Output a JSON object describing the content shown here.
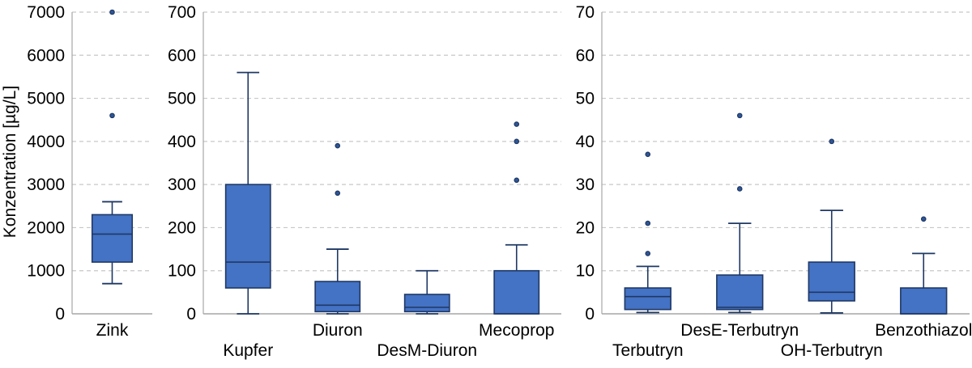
{
  "figure": {
    "background": "#ffffff"
  },
  "chart_data": {
    "type": "boxplot",
    "title": "",
    "ylabel": "Konzentration [µg/L]",
    "grid": true,
    "gridline_style": "dashed",
    "panels": [
      {
        "name": "zink",
        "ylim": [
          0,
          7000
        ],
        "ystep": 1000,
        "tick_labels": [
          "0",
          "1000",
          "2000",
          "3000",
          "4000",
          "5000",
          "6000",
          "7000"
        ],
        "series": [
          {
            "label": "Zink",
            "label_row": "upper",
            "whisker_low": 700,
            "q1": 1200,
            "median": 1850,
            "q3": 2300,
            "whisker_high": 2600,
            "outliers": [
              4600,
              7000
            ]
          }
        ]
      },
      {
        "name": "metals-herbicides",
        "ylim": [
          0,
          700
        ],
        "ystep": 100,
        "tick_labels": [
          "0",
          "100",
          "200",
          "300",
          "400",
          "500",
          "600",
          "700"
        ],
        "series": [
          {
            "label": "Kupfer",
            "label_row": "lower",
            "whisker_low": 0,
            "q1": 60,
            "median": 120,
            "q3": 300,
            "whisker_high": 560,
            "outliers": []
          },
          {
            "label": "Diuron",
            "label_row": "upper",
            "whisker_low": 0,
            "q1": 5,
            "median": 20,
            "q3": 75,
            "whisker_high": 150,
            "outliers": [
              280,
              390
            ]
          },
          {
            "label": "DesM-Diuron",
            "label_row": "lower",
            "whisker_low": 0,
            "q1": 5,
            "median": 15,
            "q3": 45,
            "whisker_high": 100,
            "outliers": []
          },
          {
            "label": "Mecoprop",
            "label_row": "upper",
            "whisker_low": null,
            "q1": 0,
            "median": 0,
            "q3": 100,
            "whisker_high": 160,
            "outliers": [
              310,
              400,
              440
            ]
          }
        ]
      },
      {
        "name": "terbutryn-group",
        "ylim": [
          0,
          70
        ],
        "ystep": 10,
        "tick_labels": [
          "0",
          "10",
          "20",
          "30",
          "40",
          "50",
          "60",
          "70"
        ],
        "series": [
          {
            "label": "Terbutryn",
            "label_row": "lower",
            "whisker_low": 0.3,
            "q1": 1,
            "median": 4,
            "q3": 6,
            "whisker_high": 11,
            "outliers": [
              14,
              21,
              37
            ]
          },
          {
            "label": "DesE-Terbutryn",
            "label_row": "upper",
            "whisker_low": 0.3,
            "q1": 1,
            "median": 1.5,
            "q3": 9,
            "whisker_high": 21,
            "outliers": [
              29,
              46
            ]
          },
          {
            "label": "OH-Terbutryn",
            "label_row": "lower",
            "whisker_low": 0.2,
            "q1": 3,
            "median": 5,
            "q3": 12,
            "whisker_high": 24,
            "outliers": [
              40
            ]
          },
          {
            "label": "Benzothiazol",
            "label_row": "upper",
            "whisker_low": null,
            "q1": 0,
            "median": 0,
            "q3": 6,
            "whisker_high": 14,
            "outliers": [
              22
            ]
          }
        ]
      }
    ],
    "colors": {
      "box_fill": "#4472c4",
      "box_stroke": "#1f3864",
      "whisker": "#1f3864",
      "outlier_fill": "#2e5697",
      "outlier_stroke": "#1f3864",
      "gridline": "#c8c8c8",
      "axis_line": "#a6a6a6",
      "text": "#000000"
    }
  }
}
